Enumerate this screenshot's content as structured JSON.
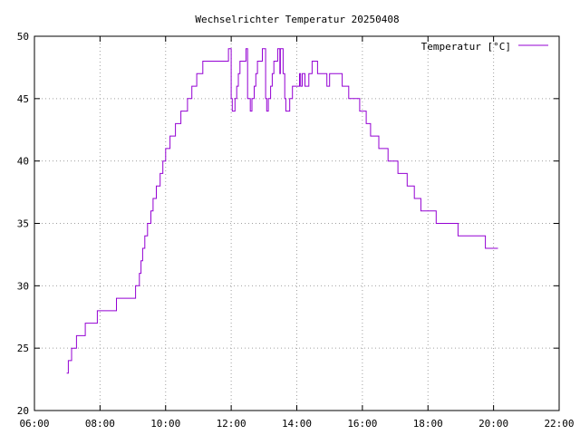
{
  "chart_data": {
    "type": "line",
    "title": "Wechselrichter Temperatur 20250408",
    "xlabel": "",
    "ylabel": "",
    "xlim": [
      "06:00",
      "22:00"
    ],
    "ylim": [
      20,
      50
    ],
    "x_ticks": [
      "06:00",
      "08:00",
      "10:00",
      "12:00",
      "14:00",
      "16:00",
      "18:00",
      "20:00",
      "22:00"
    ],
    "y_ticks": [
      20,
      25,
      30,
      35,
      40,
      45,
      50
    ],
    "grid": true,
    "legend": "top-right",
    "series": [
      {
        "name": "Temperatur [°C]",
        "color": "#9400d3",
        "step": true,
        "points": [
          [
            "06:59",
            23
          ],
          [
            "07:02",
            24
          ],
          [
            "07:08",
            25
          ],
          [
            "07:17",
            26
          ],
          [
            "07:33",
            27
          ],
          [
            "07:55",
            28
          ],
          [
            "08:30",
            29
          ],
          [
            "09:05",
            30
          ],
          [
            "09:12",
            31
          ],
          [
            "09:15",
            32
          ],
          [
            "09:18",
            33
          ],
          [
            "09:22",
            34
          ],
          [
            "09:27",
            35
          ],
          [
            "09:33",
            36
          ],
          [
            "09:37",
            37
          ],
          [
            "09:43",
            38
          ],
          [
            "09:50",
            39
          ],
          [
            "09:55",
            40
          ],
          [
            "10:00",
            41
          ],
          [
            "10:08",
            42
          ],
          [
            "10:18",
            43
          ],
          [
            "10:28",
            44
          ],
          [
            "10:40",
            45
          ],
          [
            "10:48",
            46
          ],
          [
            "10:57",
            47
          ],
          [
            "11:08",
            48
          ],
          [
            "11:55",
            49
          ],
          [
            "12:00",
            45
          ],
          [
            "12:02",
            44
          ],
          [
            "12:07",
            45
          ],
          [
            "12:10",
            46
          ],
          [
            "12:13",
            47
          ],
          [
            "12:16",
            48
          ],
          [
            "12:27",
            49
          ],
          [
            "12:30",
            45
          ],
          [
            "12:35",
            44
          ],
          [
            "12:38",
            45
          ],
          [
            "12:42",
            46
          ],
          [
            "12:45",
            47
          ],
          [
            "12:48",
            48
          ],
          [
            "12:57",
            49
          ],
          [
            "13:03",
            45
          ],
          [
            "13:05",
            44
          ],
          [
            "13:08",
            45
          ],
          [
            "13:12",
            46
          ],
          [
            "13:15",
            47
          ],
          [
            "13:18",
            48
          ],
          [
            "13:25",
            49
          ],
          [
            "13:29",
            47
          ],
          [
            "13:30",
            49
          ],
          [
            "13:35",
            47
          ],
          [
            "13:38",
            45
          ],
          [
            "13:40",
            44
          ],
          [
            "13:47",
            45
          ],
          [
            "13:52",
            46
          ],
          [
            "14:05",
            47
          ],
          [
            "14:07",
            46
          ],
          [
            "14:10",
            47
          ],
          [
            "14:15",
            46
          ],
          [
            "14:22",
            47
          ],
          [
            "14:28",
            48
          ],
          [
            "14:38",
            47
          ],
          [
            "14:55",
            46
          ],
          [
            "15:00",
            47
          ],
          [
            "15:23",
            46
          ],
          [
            "15:35",
            45
          ],
          [
            "15:55",
            44
          ],
          [
            "16:07",
            43
          ],
          [
            "16:15",
            42
          ],
          [
            "16:30",
            41
          ],
          [
            "16:47",
            40
          ],
          [
            "17:05",
            39
          ],
          [
            "17:22",
            38
          ],
          [
            "17:35",
            37
          ],
          [
            "17:47",
            36
          ],
          [
            "18:15",
            35
          ],
          [
            "18:55",
            34
          ],
          [
            "19:45",
            33
          ],
          [
            "20:08",
            33
          ]
        ]
      }
    ]
  }
}
